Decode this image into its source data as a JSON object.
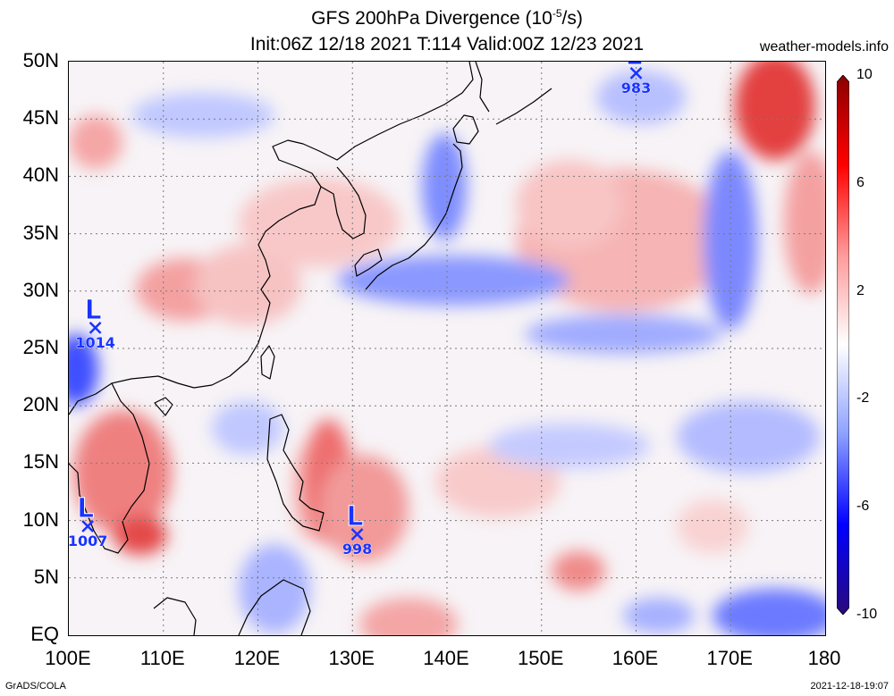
{
  "header": {
    "title_line1": "GFS 200hPa Divergence (10",
    "title_sup": "-5",
    "title_tail": "/s)",
    "title_line2": "Init:06Z 12/18 2021 T:114 Valid:00Z 12/23 2021",
    "site": "weather-models.info"
  },
  "map": {
    "lon_range": [
      100,
      180
    ],
    "lat_range": [
      0,
      50
    ],
    "lat_labels": [
      "50N",
      "45N",
      "40N",
      "35N",
      "30N",
      "25N",
      "20N",
      "15N",
      "10N",
      "5N",
      "EQ"
    ],
    "lon_labels": [
      "100E",
      "110E",
      "120E",
      "130E",
      "140E",
      "150E",
      "160E",
      "170E",
      "180"
    ],
    "grid": true
  },
  "colorbar": {
    "range": [
      -10,
      10
    ],
    "labels": [
      "10",
      "6",
      "2",
      "-2",
      "-6",
      "-10"
    ],
    "colors": [
      "#2a0a7a",
      "#0000ff",
      "#8ca0ff",
      "#ffffff",
      "#ff9a9a",
      "#ff0000",
      "#8a0000"
    ]
  },
  "lows": [
    {
      "symbol": "L",
      "value": "1014",
      "lon": 102.8,
      "lat": 26.8
    },
    {
      "symbol": "L",
      "value": "1007",
      "lon": 102.0,
      "lat": 9.5
    },
    {
      "symbol": "L",
      "value": "998",
      "lon": 130.5,
      "lat": 8.8
    },
    {
      "symbol": "L",
      "value": "983",
      "lon": 160.0,
      "lat": 49.0
    }
  ],
  "footer": {
    "credit": "GrADS/COLA",
    "timestamp": "2021-12-18-19:07"
  }
}
